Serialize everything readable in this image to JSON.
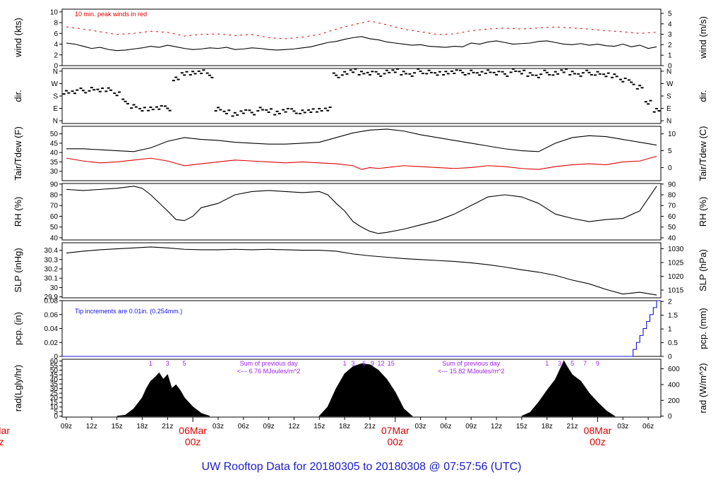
{
  "title": "UW Rooftop Data for 20180305  to  20180308 @ 07:57:56  (UTC)",
  "colors": {
    "main": "#000000",
    "peak": "#e00000",
    "dew": "#e00000",
    "pcp": "#1010e0",
    "note": "#a020f0",
    "day": "#e00000",
    "title": "#1a1ad0"
  },
  "x_axis": {
    "ticks": [
      "09z",
      "12z",
      "15z",
      "18z",
      "21z",
      "03z",
      "06z",
      "09z",
      "12z",
      "15z",
      "18z",
      "21z",
      "03z",
      "06z",
      "09z",
      "12z",
      "15z",
      "18z",
      "21z",
      "03z",
      "06z"
    ],
    "tick_hours": [
      0,
      3,
      6,
      9,
      12,
      18,
      21,
      24,
      27,
      30,
      33,
      36,
      42,
      45,
      48,
      51,
      54,
      57,
      60,
      66,
      69
    ],
    "day_labels": [
      {
        "date": "06Mar",
        "time": "00z",
        "hour": 15
      },
      {
        "date": "07Mar",
        "time": "00z",
        "hour": 39
      },
      {
        "date": "08Mar",
        "time": "00z",
        "hour": 63
      }
    ],
    "partial_left_label": {
      "date": "Mar",
      "time": "z"
    },
    "range_hours": [
      -0.5,
      70.5
    ]
  },
  "chart_data": [
    {
      "type": "line",
      "id": "wind",
      "ylabel": "wind (kts)",
      "ylabel_right": "wind (m/s)",
      "ylim": [
        0,
        10.5
      ],
      "yticks": [
        0,
        2,
        4,
        6,
        8,
        10
      ],
      "right_ticks": [
        0,
        1,
        2,
        3,
        4,
        5
      ],
      "right_factor": 1.9438,
      "annotation": "10 min. peak winds in red",
      "series": [
        {
          "role": "wind",
          "color": "#000000",
          "x": [
            0,
            1,
            2,
            3,
            4,
            5,
            6,
            7,
            8,
            9,
            10,
            11,
            12,
            13,
            14,
            15,
            16,
            17,
            18,
            19,
            20,
            21,
            22,
            23,
            24,
            25,
            26,
            27,
            28,
            29,
            30,
            31,
            32,
            33,
            34,
            35,
            36,
            37,
            38,
            39,
            40,
            41,
            42,
            43,
            44,
            45,
            46,
            47,
            48,
            49,
            50,
            51,
            52,
            53,
            54,
            55,
            56,
            57,
            58,
            59,
            60,
            61,
            62,
            63,
            64,
            65,
            66,
            67,
            68,
            69,
            70
          ],
          "y": [
            4.2,
            4.0,
            3.6,
            3.2,
            3.4,
            3.0,
            2.8,
            2.9,
            3.1,
            3.3,
            3.6,
            3.4,
            3.8,
            3.5,
            3.2,
            3.0,
            3.1,
            3.3,
            3.2,
            3.4,
            3.0,
            3.1,
            3.3,
            3.2,
            3.0,
            2.9,
            3.0,
            3.1,
            3.3,
            3.5,
            3.9,
            4.3,
            4.5,
            4.9,
            5.2,
            5.4,
            5.0,
            4.8,
            4.4,
            4.2,
            4.0,
            3.8,
            3.9,
            3.6,
            3.5,
            3.4,
            3.6,
            3.5,
            4.2,
            4.0,
            4.4,
            4.6,
            4.3,
            4.0,
            4.1,
            4.2,
            4.5,
            4.6,
            4.3,
            4.0,
            3.9,
            4.1,
            3.8,
            4.0,
            3.7,
            3.6,
            4.0,
            3.5,
            3.8,
            3.2,
            3.5
          ]
        },
        {
          "role": "peak",
          "color": "#e00000",
          "x": [
            0,
            2,
            4,
            6,
            8,
            10,
            12,
            14,
            16,
            18,
            20,
            22,
            24,
            26,
            28,
            30,
            32,
            34,
            36,
            38,
            40,
            42,
            44,
            46,
            48,
            50,
            52,
            54,
            56,
            58,
            60,
            62,
            64,
            66,
            68,
            70
          ],
          "y": [
            7.2,
            6.8,
            6.3,
            5.8,
            6.0,
            6.4,
            6.2,
            5.5,
            5.8,
            5.9,
            5.6,
            5.8,
            5.2,
            5.0,
            5.3,
            5.8,
            6.8,
            7.6,
            8.3,
            7.6,
            6.8,
            6.3,
            5.8,
            5.9,
            6.5,
            6.8,
            7.0,
            6.8,
            7.0,
            7.2,
            7.0,
            6.8,
            6.5,
            6.3,
            6.0,
            6.2
          ]
        }
      ]
    },
    {
      "type": "scatter",
      "id": "dir",
      "ylabel": "dir.",
      "ylabel_right": "dir.",
      "ylim": [
        -2,
        38
      ],
      "yticks": [
        0,
        9,
        18,
        27,
        36
      ],
      "ytick_labels": [
        "N",
        "E",
        "S",
        "W",
        "N"
      ],
      "series": [
        {
          "role": "dir",
          "color": "#000000",
          "x": [
            0,
            1,
            2,
            3,
            4,
            5,
            6,
            7,
            8,
            9,
            10,
            11,
            12,
            13,
            14,
            15,
            16,
            17,
            18,
            19,
            20,
            21,
            22,
            23,
            24,
            25,
            26,
            27,
            28,
            29,
            30,
            31,
            32,
            33,
            34,
            35,
            36,
            37,
            38,
            39,
            40,
            41,
            42,
            43,
            44,
            45,
            46,
            47,
            48,
            49,
            50,
            51,
            52,
            53,
            54,
            55,
            56,
            57,
            58,
            59,
            60,
            61,
            62,
            63,
            64,
            65,
            66,
            67,
            68,
            69,
            70
          ],
          "y": [
            21,
            21.5,
            22,
            22.5,
            22,
            23,
            20,
            14,
            10,
            8,
            9,
            10,
            9,
            30,
            34,
            35,
            36,
            33,
            8,
            6,
            5,
            7,
            6,
            8,
            7,
            6,
            8,
            7,
            6,
            7,
            8,
            9,
            33,
            34,
            36,
            35,
            35,
            34,
            35,
            36,
            35,
            34,
            36,
            35,
            34,
            35,
            36,
            35,
            35,
            34,
            36,
            35,
            34,
            36,
            35,
            34,
            33,
            35,
            34,
            36,
            35,
            34,
            35,
            34,
            33,
            33,
            30,
            28,
            24,
            13,
            8
          ]
        }
      ]
    },
    {
      "type": "line",
      "id": "temp",
      "ylabel": "Tair/Tdew (F)",
      "ylabel_right": "Tair/Tdew (C)",
      "ylim": [
        25,
        54
      ],
      "yticks": [
        30,
        35,
        40,
        45,
        50
      ],
      "right_ticks": [
        0,
        5,
        10
      ],
      "series": [
        {
          "role": "tair",
          "color": "#000000",
          "x": [
            0,
            2,
            4,
            6,
            8,
            10,
            12,
            14,
            16,
            18,
            20,
            22,
            24,
            26,
            28,
            30,
            32,
            34,
            36,
            38,
            40,
            42,
            44,
            46,
            48,
            50,
            52,
            54,
            56,
            58,
            60,
            62,
            64,
            66,
            68,
            70
          ],
          "y": [
            42,
            42,
            41.5,
            41,
            40.5,
            42.5,
            46,
            48,
            47,
            46.5,
            45.5,
            45,
            44.5,
            44.5,
            45,
            45.5,
            48,
            50.5,
            52,
            52.5,
            51.5,
            49.5,
            48,
            46.5,
            45,
            43.5,
            42,
            41,
            40.5,
            45,
            48,
            49,
            48.5,
            47,
            45.5,
            44
          ]
        },
        {
          "role": "tdew",
          "color": "#e00000",
          "x": [
            0,
            2,
            4,
            6,
            8,
            10,
            12,
            14,
            16,
            18,
            20,
            22,
            24,
            26,
            28,
            30,
            32,
            34,
            35,
            36,
            37,
            38,
            40,
            42,
            44,
            46,
            48,
            50,
            52,
            54,
            56,
            58,
            60,
            62,
            64,
            66,
            68,
            70
          ],
          "y": [
            37,
            35.5,
            34.5,
            35,
            36,
            37,
            35.5,
            33,
            34,
            35,
            36,
            35.5,
            35,
            34.5,
            35,
            34.5,
            34,
            33,
            31,
            32,
            31.5,
            32,
            33,
            32.5,
            32,
            31.5,
            32,
            33,
            32.5,
            31.5,
            31,
            32.5,
            33.5,
            34,
            33.5,
            35,
            35.5,
            38
          ]
        }
      ]
    },
    {
      "type": "line",
      "id": "rh",
      "ylabel": "RH (%)",
      "ylabel_right": "RH (%)",
      "ylim": [
        38,
        90.5
      ],
      "yticks": [
        40,
        50,
        60,
        70,
        80,
        90
      ],
      "right_ticks": [
        40,
        50,
        60,
        70,
        80,
        90
      ],
      "series": [
        {
          "role": "rh",
          "color": "#000000",
          "x": [
            0,
            2,
            4,
            6,
            8,
            9,
            10,
            12,
            13,
            14,
            15,
            16,
            18,
            20,
            22,
            24,
            26,
            28,
            30,
            31,
            32,
            33,
            34,
            35,
            36,
            37,
            38,
            40,
            42,
            44,
            46,
            48,
            50,
            52,
            54,
            56,
            58,
            60,
            62,
            64,
            66,
            68,
            70
          ],
          "y": [
            85,
            84,
            85,
            86,
            88,
            86,
            80,
            65,
            57,
            56,
            60,
            68,
            72,
            80,
            83,
            84,
            83,
            82,
            83,
            80,
            72,
            65,
            55,
            50,
            46,
            44,
            45,
            48,
            52,
            56,
            62,
            70,
            78,
            80,
            78,
            72,
            62,
            58,
            55,
            57,
            58,
            65,
            88
          ]
        }
      ]
    },
    {
      "type": "line",
      "id": "slp",
      "ylabel": "SLP (inHg)",
      "ylabel_right": "SLP (hPa)",
      "ylim": [
        29.89,
        30.48
      ],
      "yticks": [
        29.9,
        30.0,
        30.1,
        30.2,
        30.3,
        30.4
      ],
      "right_ticks": [
        1015,
        1020,
        1025,
        1030
      ],
      "series": [
        {
          "role": "slp",
          "color": "#000000",
          "x": [
            0,
            2,
            4,
            6,
            8,
            10,
            12,
            14,
            16,
            18,
            20,
            22,
            24,
            26,
            28,
            30,
            32,
            34,
            36,
            38,
            40,
            42,
            44,
            46,
            48,
            50,
            52,
            54,
            56,
            58,
            60,
            62,
            64,
            66,
            68,
            70
          ],
          "y": [
            30.37,
            30.39,
            30.405,
            30.415,
            30.425,
            30.435,
            30.425,
            30.41,
            30.405,
            30.405,
            30.41,
            30.405,
            30.41,
            30.405,
            30.4,
            30.4,
            30.39,
            30.36,
            30.34,
            30.325,
            30.31,
            30.3,
            30.29,
            30.28,
            30.265,
            30.245,
            30.22,
            30.19,
            30.165,
            30.13,
            30.08,
            30.04,
            29.98,
            29.93,
            29.95,
            29.92
          ]
        }
      ]
    },
    {
      "type": "line",
      "id": "pcp",
      "ylabel": "pcp. (in)",
      "ylabel_right": "pcp. (mm)",
      "ylim": [
        0,
        0.08
      ],
      "yticks": [
        0.0,
        0.02,
        0.04,
        0.06,
        0.08
      ],
      "right_ticks": [
        0,
        0.5,
        1,
        1.5,
        2
      ],
      "annotation": "Tip increments are 0.01in. (0.254mm.)",
      "series": [
        {
          "role": "pcp",
          "color": "#1010e0",
          "x": [
            -0.5,
            67.0,
            67.2,
            67.6,
            68.0,
            68.4,
            68.8,
            69.2,
            69.6,
            70.0,
            70.5
          ],
          "y": [
            0,
            0,
            0.01,
            0.02,
            0.03,
            0.04,
            0.05,
            0.06,
            0.07,
            0.08,
            0.08
          ]
        }
      ]
    },
    {
      "type": "area",
      "id": "rad",
      "ylabel": "rad(Lgly/hr)",
      "ylabel_right": "rad (W/m^2)",
      "ylim": [
        -1,
        62
      ],
      "yticks": [
        0,
        5,
        10,
        15,
        20,
        25,
        30,
        35,
        40,
        45,
        50,
        55,
        60
      ],
      "right_ticks": [
        0,
        200,
        400,
        600
      ],
      "series": [
        {
          "role": "rad",
          "color": "#000000",
          "x": [
            6,
            7,
            8,
            9,
            9.5,
            10,
            10.5,
            11,
            11.5,
            12,
            12.5,
            13,
            13.5,
            14,
            15,
            16,
            17
          ],
          "y": [
            0,
            1,
            8,
            20,
            30,
            38,
            42,
            47,
            40,
            45,
            30,
            34,
            28,
            20,
            10,
            3,
            0
          ]
        },
        {
          "role": "rad",
          "color": "#000000",
          "x": [
            30,
            31,
            32,
            33,
            34,
            35,
            36,
            37,
            38,
            39,
            40,
            41
          ],
          "y": [
            0,
            10,
            30,
            46,
            54,
            57,
            56,
            50,
            40,
            26,
            8,
            0
          ]
        },
        {
          "role": "rad",
          "color": "#000000",
          "x": [
            54,
            55,
            56,
            57,
            58,
            58.5,
            59,
            59.5,
            60,
            61,
            62,
            63,
            64,
            65
          ],
          "y": [
            0,
            4,
            15,
            28,
            40,
            50,
            60,
            52,
            45,
            38,
            25,
            15,
            6,
            0
          ]
        }
      ],
      "day_marks": [
        {
          "labels": [
            "1",
            "3",
            "5"
          ],
          "hours": [
            10,
            12,
            14
          ]
        },
        {
          "labels": [
            "1",
            "3",
            "6",
            "9",
            "12",
            "15"
          ],
          "hours": [
            33,
            34,
            35.3,
            36.3,
            37.3,
            38.5
          ]
        },
        {
          "labels": [
            "1",
            "3",
            "5",
            "7",
            "9"
          ],
          "hours": [
            57,
            58.5,
            60,
            61.5,
            63
          ]
        }
      ],
      "sums": [
        {
          "line1": "Sum of previous day",
          "line2": "<--- 6.76 MJoules/m^2",
          "hour": 24
        },
        {
          "line1": "Sum of previous day",
          "line2": "<--- 15.82 MJoules/m^2",
          "hour": 48
        }
      ]
    }
  ]
}
